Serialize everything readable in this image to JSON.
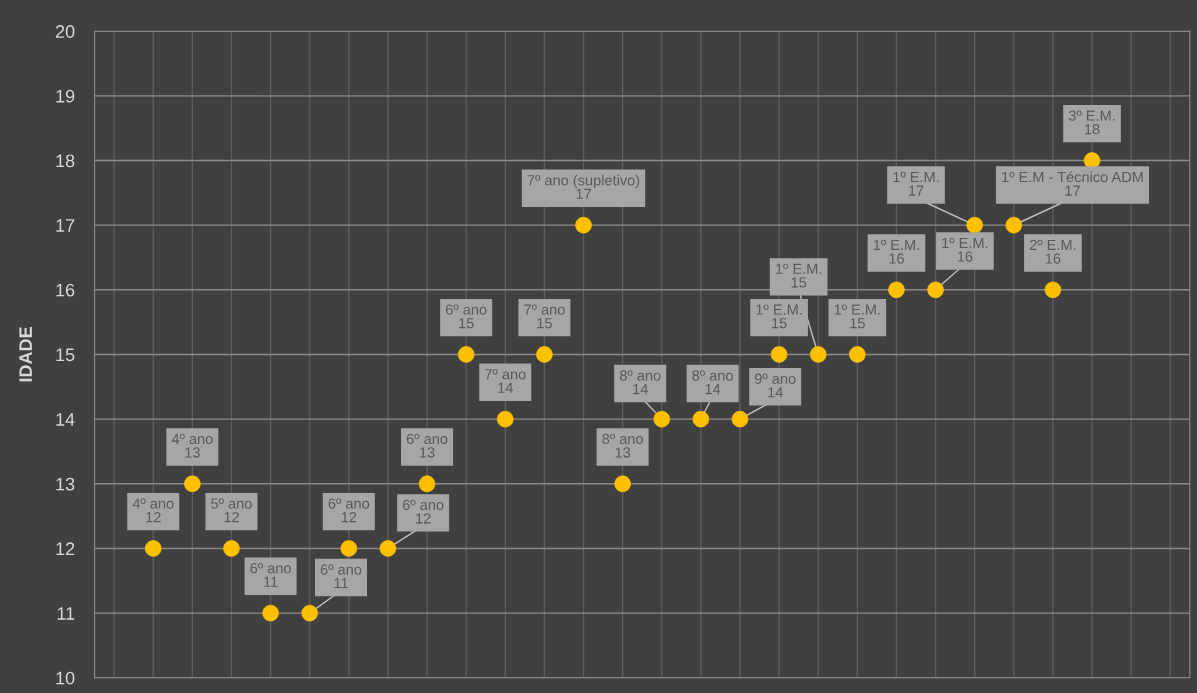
{
  "chart_data": {
    "type": "scatter",
    "ylabel": "IDADE",
    "categories": [
      null,
      null,
      null,
      null,
      null,
      null,
      null,
      null,
      null,
      null,
      null,
      null,
      null,
      null,
      null,
      null,
      null,
      null,
      null,
      null,
      null,
      null,
      null,
      null,
      null,
      null,
      null,
      null
    ],
    "values": [
      null,
      12,
      13,
      12,
      11,
      11,
      12,
      12,
      13,
      15,
      14,
      15,
      17,
      13,
      14,
      14,
      14,
      15,
      15,
      15,
      16,
      16,
      17,
      17,
      16,
      18,
      null,
      null
    ],
    "value_labels": [
      null,
      "4º ano\n12",
      "4º ano\n13",
      "5º ano\n12",
      "6º ano\n11",
      "6º ano\n11",
      "6º ano\n12",
      "6º ano\n12",
      "6º ano\n13",
      "6º ano\n15",
      "7º ano\n14",
      "7º ano\n15",
      "7º ano (supletivo)\n17",
      "8º ano\n13",
      "8º ano\n14",
      "8º ano\n14",
      "9º ano\n14",
      "1º E.M.\n15",
      "1º E.M.\n15",
      "1º E.M.\n15",
      "1º E.M.\n16",
      "1º E.M.\n16",
      "1º E.M.\n17",
      "1º E.M - Técnico ADM\n17",
      "2º E.M.\n16",
      "3º E.M.\n18",
      null,
      null
    ],
    "color": "#ffc000",
    "marker": "circle",
    "ylim": [
      10,
      20
    ],
    "yticks": [
      10,
      11,
      12,
      13,
      14,
      15,
      16,
      17,
      18,
      19,
      20
    ],
    "grid": true
  }
}
